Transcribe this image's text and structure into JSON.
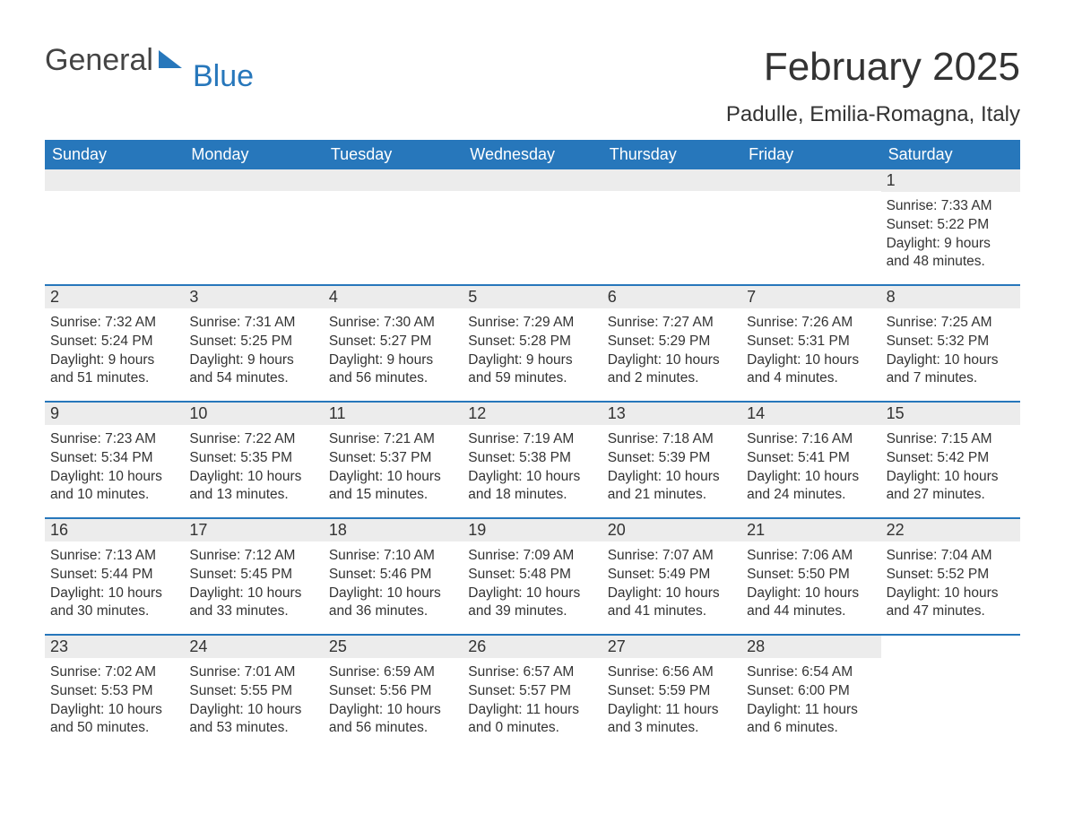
{
  "logo": {
    "word1": "General",
    "word2": "Blue",
    "accent_color": "#2777bb"
  },
  "header": {
    "month_title": "February 2025",
    "location": "Padulle, Emilia-Romagna, Italy"
  },
  "colors": {
    "header_bg": "#2777bb",
    "header_text": "#ffffff",
    "daynum_bg": "#ececec",
    "row_border": "#2777bb",
    "text": "#333333",
    "background": "#ffffff"
  },
  "typography": {
    "month_title_fontsize": 44,
    "location_fontsize": 24,
    "weekday_fontsize": 18,
    "daynum_fontsize": 18,
    "body_fontsize": 15.5
  },
  "layout": {
    "columns": 7,
    "rows": 5
  },
  "weekdays": [
    "Sunday",
    "Monday",
    "Tuesday",
    "Wednesday",
    "Thursday",
    "Friday",
    "Saturday"
  ],
  "labels": {
    "sunrise": "Sunrise:",
    "sunset": "Sunset:",
    "daylight": "Daylight:"
  },
  "weeks": [
    [
      null,
      null,
      null,
      null,
      null,
      null,
      {
        "day": "1",
        "sunrise": "7:33 AM",
        "sunset": "5:22 PM",
        "daylight1": "9 hours",
        "daylight2": "and 48 minutes."
      }
    ],
    [
      {
        "day": "2",
        "sunrise": "7:32 AM",
        "sunset": "5:24 PM",
        "daylight1": "9 hours",
        "daylight2": "and 51 minutes."
      },
      {
        "day": "3",
        "sunrise": "7:31 AM",
        "sunset": "5:25 PM",
        "daylight1": "9 hours",
        "daylight2": "and 54 minutes."
      },
      {
        "day": "4",
        "sunrise": "7:30 AM",
        "sunset": "5:27 PM",
        "daylight1": "9 hours",
        "daylight2": "and 56 minutes."
      },
      {
        "day": "5",
        "sunrise": "7:29 AM",
        "sunset": "5:28 PM",
        "daylight1": "9 hours",
        "daylight2": "and 59 minutes."
      },
      {
        "day": "6",
        "sunrise": "7:27 AM",
        "sunset": "5:29 PM",
        "daylight1": "10 hours",
        "daylight2": "and 2 minutes."
      },
      {
        "day": "7",
        "sunrise": "7:26 AM",
        "sunset": "5:31 PM",
        "daylight1": "10 hours",
        "daylight2": "and 4 minutes."
      },
      {
        "day": "8",
        "sunrise": "7:25 AM",
        "sunset": "5:32 PM",
        "daylight1": "10 hours",
        "daylight2": "and 7 minutes."
      }
    ],
    [
      {
        "day": "9",
        "sunrise": "7:23 AM",
        "sunset": "5:34 PM",
        "daylight1": "10 hours",
        "daylight2": "and 10 minutes."
      },
      {
        "day": "10",
        "sunrise": "7:22 AM",
        "sunset": "5:35 PM",
        "daylight1": "10 hours",
        "daylight2": "and 13 minutes."
      },
      {
        "day": "11",
        "sunrise": "7:21 AM",
        "sunset": "5:37 PM",
        "daylight1": "10 hours",
        "daylight2": "and 15 minutes."
      },
      {
        "day": "12",
        "sunrise": "7:19 AM",
        "sunset": "5:38 PM",
        "daylight1": "10 hours",
        "daylight2": "and 18 minutes."
      },
      {
        "day": "13",
        "sunrise": "7:18 AM",
        "sunset": "5:39 PM",
        "daylight1": "10 hours",
        "daylight2": "and 21 minutes."
      },
      {
        "day": "14",
        "sunrise": "7:16 AM",
        "sunset": "5:41 PM",
        "daylight1": "10 hours",
        "daylight2": "and 24 minutes."
      },
      {
        "day": "15",
        "sunrise": "7:15 AM",
        "sunset": "5:42 PM",
        "daylight1": "10 hours",
        "daylight2": "and 27 minutes."
      }
    ],
    [
      {
        "day": "16",
        "sunrise": "7:13 AM",
        "sunset": "5:44 PM",
        "daylight1": "10 hours",
        "daylight2": "and 30 minutes."
      },
      {
        "day": "17",
        "sunrise": "7:12 AM",
        "sunset": "5:45 PM",
        "daylight1": "10 hours",
        "daylight2": "and 33 minutes."
      },
      {
        "day": "18",
        "sunrise": "7:10 AM",
        "sunset": "5:46 PM",
        "daylight1": "10 hours",
        "daylight2": "and 36 minutes."
      },
      {
        "day": "19",
        "sunrise": "7:09 AM",
        "sunset": "5:48 PM",
        "daylight1": "10 hours",
        "daylight2": "and 39 minutes."
      },
      {
        "day": "20",
        "sunrise": "7:07 AM",
        "sunset": "5:49 PM",
        "daylight1": "10 hours",
        "daylight2": "and 41 minutes."
      },
      {
        "day": "21",
        "sunrise": "7:06 AM",
        "sunset": "5:50 PM",
        "daylight1": "10 hours",
        "daylight2": "and 44 minutes."
      },
      {
        "day": "22",
        "sunrise": "7:04 AM",
        "sunset": "5:52 PM",
        "daylight1": "10 hours",
        "daylight2": "and 47 minutes."
      }
    ],
    [
      {
        "day": "23",
        "sunrise": "7:02 AM",
        "sunset": "5:53 PM",
        "daylight1": "10 hours",
        "daylight2": "and 50 minutes."
      },
      {
        "day": "24",
        "sunrise": "7:01 AM",
        "sunset": "5:55 PM",
        "daylight1": "10 hours",
        "daylight2": "and 53 minutes."
      },
      {
        "day": "25",
        "sunrise": "6:59 AM",
        "sunset": "5:56 PM",
        "daylight1": "10 hours",
        "daylight2": "and 56 minutes."
      },
      {
        "day": "26",
        "sunrise": "6:57 AM",
        "sunset": "5:57 PM",
        "daylight1": "11 hours",
        "daylight2": "and 0 minutes."
      },
      {
        "day": "27",
        "sunrise": "6:56 AM",
        "sunset": "5:59 PM",
        "daylight1": "11 hours",
        "daylight2": "and 3 minutes."
      },
      {
        "day": "28",
        "sunrise": "6:54 AM",
        "sunset": "6:00 PM",
        "daylight1": "11 hours",
        "daylight2": "and 6 minutes."
      },
      null
    ]
  ]
}
